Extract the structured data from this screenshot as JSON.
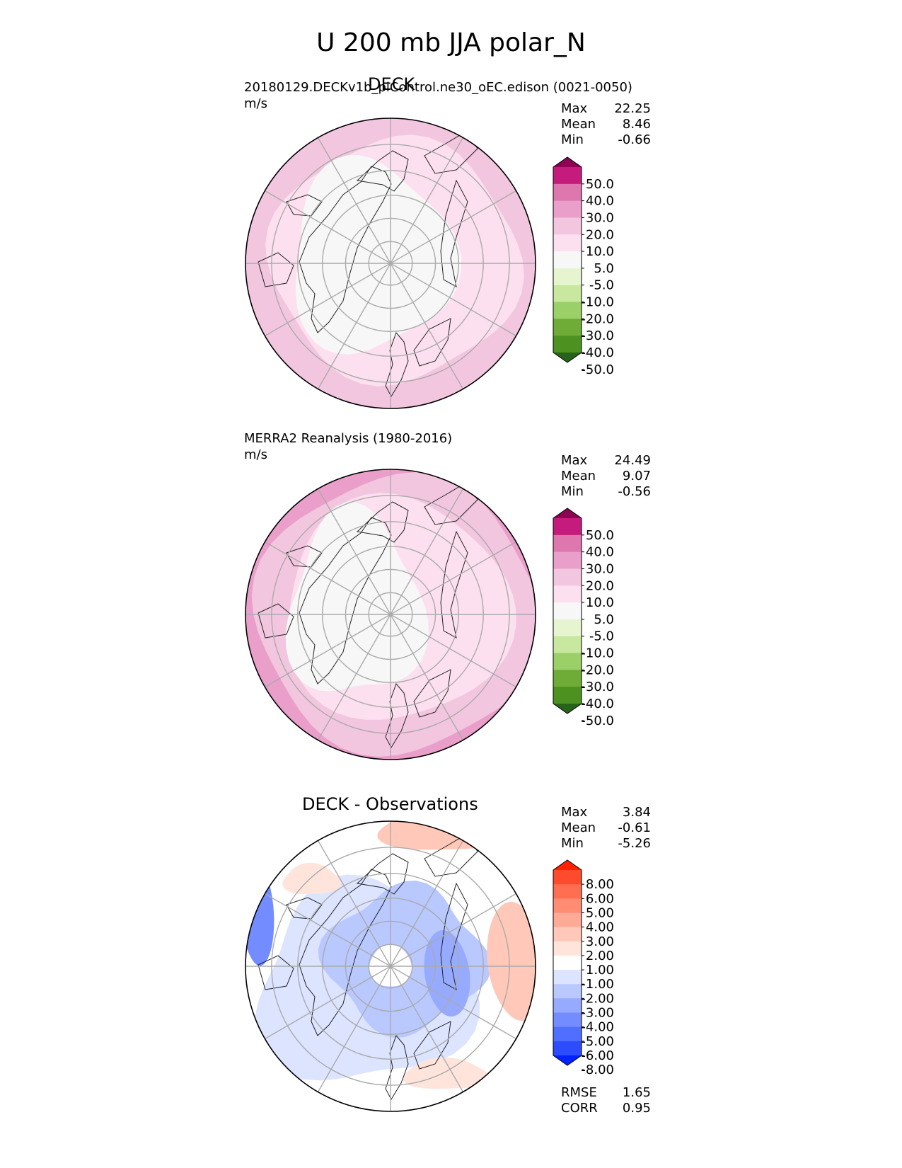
{
  "title": "U 200 mb JJA polar_N",
  "panels": [
    {
      "id": "test",
      "center_title": "DECK",
      "left_title": "20180129.DECKv1b_piControl.ne30_oEC.edison (0021-0050)",
      "units": "m/s",
      "stats": [
        {
          "label": "Max",
          "value": "22.25"
        },
        {
          "label": "Mean",
          "value": "8.46"
        },
        {
          "label": "Min",
          "value": "-0.66"
        }
      ]
    },
    {
      "id": "ref",
      "center_title": "",
      "left_title": "MERRA2 Reanalysis (1980-2016)",
      "units": "m/s",
      "stats": [
        {
          "label": "Max",
          "value": "24.49"
        },
        {
          "label": "Mean",
          "value": "9.07"
        },
        {
          "label": "Min",
          "value": "-0.56"
        }
      ]
    },
    {
      "id": "diff",
      "center_title": "DECK - Observations",
      "left_title": "",
      "units": "",
      "stats": [
        {
          "label": "Max",
          "value": "3.84"
        },
        {
          "label": "Mean",
          "value": "-0.61"
        },
        {
          "label": "Min",
          "value": "-5.26"
        }
      ],
      "metrics": [
        {
          "label": "RMSE",
          "value": "1.65"
        },
        {
          "label": "CORR",
          "value": "0.95"
        }
      ]
    }
  ],
  "chart_data": [
    {
      "type": "heatmap",
      "projection": "north polar stereographic",
      "title": "DECK",
      "units": "m/s",
      "max": 22.25,
      "mean": 8.46,
      "min": -0.66,
      "colorbar_ticks": [
        "50.0",
        "40.0",
        "30.0",
        "20.0",
        "10.0",
        "5.0",
        "-5.0",
        "-10.0",
        "-20.0",
        "-30.0",
        "-40.0",
        "-50.0"
      ],
      "colorbar_colors": [
        "#8e0152",
        "#c51b7d",
        "#de77ae",
        "#ea9fca",
        "#f3c6e0",
        "#fde0ef",
        "#f7f7f7",
        "#e6f5d0",
        "#c8e79f",
        "#9bcf67",
        "#6fab37",
        "#4d9221",
        "#276419"
      ]
    },
    {
      "type": "heatmap",
      "projection": "north polar stereographic",
      "title": "MERRA2 Reanalysis (1980-2016)",
      "units": "m/s",
      "max": 24.49,
      "mean": 9.07,
      "min": -0.56,
      "colorbar_ticks": [
        "50.0",
        "40.0",
        "30.0",
        "20.0",
        "10.0",
        "5.0",
        "-5.0",
        "-10.0",
        "-20.0",
        "-30.0",
        "-40.0",
        "-50.0"
      ],
      "colorbar_colors": [
        "#8e0152",
        "#c51b7d",
        "#de77ae",
        "#ea9fca",
        "#f3c6e0",
        "#fde0ef",
        "#f7f7f7",
        "#e6f5d0",
        "#c8e79f",
        "#9bcf67",
        "#6fab37",
        "#4d9221",
        "#276419"
      ]
    },
    {
      "type": "heatmap",
      "projection": "north polar stereographic",
      "title": "DECK - Observations",
      "max": 3.84,
      "mean": -0.61,
      "min": -5.26,
      "rmse": 1.65,
      "corr": 0.95,
      "colorbar_ticks": [
        "8.00",
        "6.00",
        "5.00",
        "4.00",
        "3.00",
        "2.00",
        "1.00",
        "-1.00",
        "-2.00",
        "-3.00",
        "-4.00",
        "-5.00",
        "-6.00",
        "-8.00"
      ],
      "colorbar_colors": [
        "#ff2200",
        "#ff4b2d",
        "#ff6e50",
        "#ff8c73",
        "#ffaa96",
        "#ffc8b9",
        "#ffe4dc",
        "#ffffff",
        "#dce4ff",
        "#b9c8ff",
        "#96aaff",
        "#738cff",
        "#506eff",
        "#2d4bff",
        "#0022ff"
      ]
    }
  ]
}
